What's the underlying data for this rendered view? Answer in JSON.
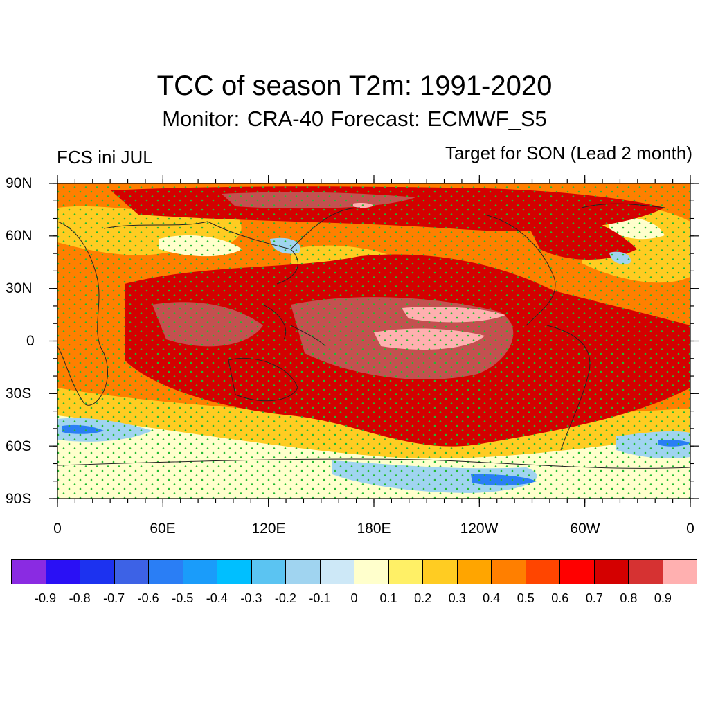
{
  "title": "TCC of season T2m: 1991-2020",
  "subtitle": "Monitor: CRA-40   Forecast: ECMWF_S5",
  "left_label": "FCS ini JUL",
  "right_label": "Target for SON (Lead 2 month)",
  "y_ticks": [
    "90N",
    "60N",
    "30N",
    "0",
    "30S",
    "60S",
    "90S"
  ],
  "x_ticks": [
    "0",
    "60E",
    "120E",
    "180E",
    "120W",
    "60W",
    "0"
  ],
  "colorbar": {
    "colors": [
      "#8a2be2",
      "#2a10f5",
      "#1c32f0",
      "#3d62e6",
      "#2a7ef5",
      "#1a9cfa",
      "#00bfff",
      "#5bc4f2",
      "#a0d4f0",
      "#cde8f7",
      "#ffffcc",
      "#fff066",
      "#ffcc22",
      "#ffa500",
      "#ff7f00",
      "#ff4500",
      "#ff0000",
      "#d40000",
      "#d63232",
      "#ffb0b0"
    ],
    "labels": [
      "-0.9",
      "-0.8",
      "-0.7",
      "-0.6",
      "-0.5",
      "-0.4",
      "-0.3",
      "-0.2",
      "-0.1",
      "0",
      "0.1",
      "0.2",
      "0.3",
      "0.4",
      "0.5",
      "0.6",
      "0.7",
      "0.8",
      "0.9"
    ]
  },
  "map_colors": {
    "ocean_base": "#ff7f00",
    "strong": "#d40000",
    "very_strong": "#c45050",
    "peak": "#ffb0b0",
    "weak": "#ffcc22",
    "neutral": "#ffffcc",
    "negative": "#a0d4f0",
    "negative_strong": "#2a7ef5",
    "stipple": "#22bb33",
    "coast": "#222222"
  }
}
